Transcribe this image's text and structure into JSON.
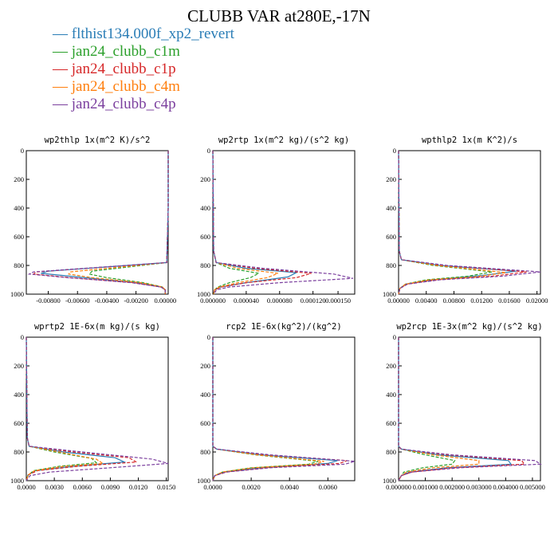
{
  "title": "CLUBB VAR at280E,-17N",
  "legend": [
    {
      "name": "flthist134.000f_xp2_revert",
      "color": "#2a7db6"
    },
    {
      "name": "jan24_clubb_c1m",
      "color": "#2ca02c"
    },
    {
      "name": "jan24_clubb_c1p",
      "color": "#d62728"
    },
    {
      "name": "jan24_clubb_c4m",
      "color": "#ff7f0e"
    },
    {
      "name": "jan24_clubb_c4p",
      "color": "#7b3f9e"
    }
  ],
  "chart_data": [
    {
      "type": "line",
      "title": "wp2thlp  1x(m^2 K)/s^2",
      "xlim": [
        -0.0095,
        0.0002
      ],
      "ylim": [
        1000,
        0
      ],
      "x_ticks": [
        "-0.00800",
        "-0.00600",
        "-0.00400",
        "-0.00200",
        "0.00000"
      ],
      "x_tick_values": [
        -0.008,
        -0.006,
        -0.004,
        -0.002,
        0
      ],
      "y_ticks": [
        "0",
        "200",
        "400",
        "600",
        "800",
        "1000"
      ],
      "y_tick_values": [
        0,
        200,
        400,
        600,
        800,
        1000
      ],
      "series": [
        {
          "name": "flthist134.000f_xp2_revert",
          "style": "solid",
          "y": [
            0,
            400,
            780,
            840,
            855,
            880,
            920,
            950,
            970,
            1000
          ],
          "x": [
            0.0002,
            0.0002,
            0.0001,
            -0.008,
            -0.0085,
            -0.006,
            -0.002,
            -0.0003,
            0,
            0
          ]
        },
        {
          "name": "jan24_clubb_c1m",
          "style": "dash",
          "y": [
            0,
            400,
            780,
            840,
            860,
            885,
            920,
            950,
            970,
            1000
          ],
          "x": [
            0.0002,
            0.0002,
            0.0001,
            -0.005,
            -0.0052,
            -0.004,
            -0.0015,
            -0.0002,
            0,
            0
          ]
        },
        {
          "name": "jan24_clubb_c1p",
          "style": "dash",
          "y": [
            0,
            400,
            780,
            845,
            860,
            885,
            920,
            950,
            970,
            1000
          ],
          "x": [
            0.0002,
            0.0002,
            0.0001,
            -0.0088,
            -0.009,
            -0.0065,
            -0.0022,
            -0.0003,
            0,
            0
          ]
        },
        {
          "name": "jan24_clubb_c4m",
          "style": "dash",
          "y": [
            0,
            400,
            780,
            845,
            860,
            885,
            920,
            950,
            970,
            1000
          ],
          "x": [
            0.0002,
            0.0002,
            0.0001,
            -0.0065,
            -0.0066,
            -0.005,
            -0.0017,
            -0.0002,
            0,
            0
          ]
        },
        {
          "name": "jan24_clubb_c4p",
          "style": "dash",
          "y": [
            0,
            400,
            780,
            845,
            860,
            885,
            920,
            950,
            970,
            1000
          ],
          "x": [
            0.0002,
            0.0002,
            0.0001,
            -0.009,
            -0.0093,
            -0.0067,
            -0.0023,
            -0.0003,
            0,
            0
          ]
        }
      ]
    },
    {
      "type": "line",
      "title": "wp2rtp  1x(m^2 kg)/(s^2 kg)",
      "xlim": [
        0,
        0.00017
      ],
      "ylim": [
        1000,
        0
      ],
      "x_ticks": [
        "0.000000",
        "0.000040",
        "0.000080",
        "0.000120",
        "0.000150"
      ],
      "x_tick_values": [
        0,
        4e-05,
        8e-05,
        0.00012,
        0.00015
      ],
      "y_ticks": [
        "0",
        "200",
        "400",
        "600",
        "800",
        "1000"
      ],
      "y_tick_values": [
        0,
        200,
        400,
        600,
        800,
        1000
      ],
      "series": [
        {
          "name": "flthist134.000f_xp2_revert",
          "style": "solid",
          "y": [
            0,
            700,
            780,
            820,
            850,
            880,
            920,
            950,
            970,
            1000
          ],
          "x": [
            0,
            1e-06,
            4e-06,
            4e-05,
            0.0001,
            9e-05,
            4e-05,
            1e-05,
            2e-06,
            1e-06
          ]
        },
        {
          "name": "jan24_clubb_c1m",
          "style": "dash",
          "y": [
            0,
            700,
            780,
            820,
            855,
            885,
            920,
            950,
            970,
            1000
          ],
          "x": [
            0,
            1e-06,
            4e-06,
            2e-05,
            5.5e-05,
            4.5e-05,
            2e-05,
            6e-06,
            2e-06,
            1e-06
          ]
        },
        {
          "name": "jan24_clubb_c1p",
          "style": "dash",
          "y": [
            0,
            700,
            780,
            820,
            855,
            885,
            920,
            950,
            970,
            1000
          ],
          "x": [
            0,
            1e-06,
            4e-06,
            5e-05,
            0.000118,
            0.0001,
            4e-05,
            1e-05,
            2e-06,
            1e-06
          ]
        },
        {
          "name": "jan24_clubb_c4m",
          "style": "dash",
          "y": [
            0,
            700,
            780,
            820,
            855,
            885,
            920,
            950,
            970,
            1000
          ],
          "x": [
            0,
            1e-06,
            4e-06,
            3e-05,
            7.8e-05,
            6.5e-05,
            3e-05,
            8e-06,
            2e-06,
            1e-06
          ]
        },
        {
          "name": "jan24_clubb_c4p",
          "style": "dash",
          "y": [
            0,
            700,
            780,
            820,
            860,
            890,
            920,
            950,
            970,
            1000
          ],
          "x": [
            0,
            1e-06,
            4e-06,
            6e-05,
            0.000145,
            0.000168,
            8e-05,
            2e-05,
            4e-06,
            2e-06
          ]
        }
      ]
    },
    {
      "type": "line",
      "title": "wpthlp2  1x(m K^2)/s",
      "xlim": [
        0,
        0.0205
      ],
      "ylim": [
        1000,
        0
      ],
      "x_ticks": [
        "0.00000",
        "0.00400",
        "0.00800",
        "0.01200",
        "0.01600",
        "0.02000"
      ],
      "x_tick_values": [
        0,
        0.004,
        0.008,
        0.012,
        0.016,
        0.02
      ],
      "y_ticks": [
        "0",
        "200",
        "400",
        "600",
        "800",
        "1000"
      ],
      "y_tick_values": [
        0,
        200,
        400,
        600,
        800,
        1000
      ],
      "series": [
        {
          "name": "flthist134.000f_xp2_revert",
          "style": "solid",
          "y": [
            0,
            700,
            760,
            800,
            840,
            870,
            900,
            930,
            960,
            1000
          ],
          "x": [
            0,
            0.0001,
            0.0004,
            0.006,
            0.017,
            0.012,
            0.005,
            0.001,
            0.0002,
            0
          ]
        },
        {
          "name": "jan24_clubb_c1m",
          "style": "dash",
          "y": [
            0,
            700,
            760,
            800,
            845,
            875,
            900,
            930,
            960,
            1000
          ],
          "x": [
            0,
            0.0001,
            0.0004,
            0.005,
            0.0135,
            0.01,
            0.004,
            0.001,
            0.0002,
            0
          ]
        },
        {
          "name": "jan24_clubb_c1p",
          "style": "dash",
          "y": [
            0,
            700,
            760,
            800,
            845,
            875,
            900,
            930,
            960,
            1000
          ],
          "x": [
            0,
            0.0001,
            0.0004,
            0.0065,
            0.0185,
            0.0135,
            0.0055,
            0.0012,
            0.0002,
            0
          ]
        },
        {
          "name": "jan24_clubb_c4m",
          "style": "dash",
          "y": [
            0,
            700,
            760,
            800,
            850,
            880,
            900,
            930,
            960,
            1000
          ],
          "x": [
            0,
            0.0001,
            0.0004,
            0.0055,
            0.0155,
            0.011,
            0.0045,
            0.001,
            0.0002,
            0
          ]
        },
        {
          "name": "jan24_clubb_c4p",
          "style": "dash",
          "y": [
            0,
            700,
            760,
            800,
            845,
            875,
            900,
            930,
            960,
            1000
          ],
          "x": [
            0,
            0.0001,
            0.0004,
            0.007,
            0.0205,
            0.015,
            0.006,
            0.0013,
            0.0002,
            0
          ]
        }
      ]
    },
    {
      "type": "line",
      "title": "wprtp2  1E-6x(m kg)/(s kg)",
      "xlim": [
        0,
        0.0152
      ],
      "ylim": [
        1000,
        0
      ],
      "x_ticks": [
        "0.0000",
        "0.0030",
        "0.0060",
        "0.0090",
        "0.0120",
        "0.0150"
      ],
      "x_tick_values": [
        0,
        0.003,
        0.006,
        0.009,
        0.012,
        0.015
      ],
      "y_ticks": [
        "0",
        "200",
        "400",
        "600",
        "800",
        "1000"
      ],
      "y_tick_values": [
        0,
        200,
        400,
        600,
        800,
        1000
      ],
      "series": [
        {
          "name": "flthist134.000f_xp2_revert",
          "style": "solid",
          "y": [
            0,
            700,
            760,
            800,
            840,
            870,
            900,
            930,
            960,
            1000
          ],
          "x": [
            0,
            0.0001,
            0.0003,
            0.004,
            0.0095,
            0.0105,
            0.005,
            0.001,
            0.0002,
            0
          ]
        },
        {
          "name": "jan24_clubb_c1m",
          "style": "dash",
          "y": [
            0,
            700,
            760,
            800,
            845,
            875,
            900,
            930,
            960,
            1000
          ],
          "x": [
            0,
            0.0001,
            0.0003,
            0.003,
            0.007,
            0.0075,
            0.0035,
            0.0008,
            0.0002,
            0
          ]
        },
        {
          "name": "jan24_clubb_c1p",
          "style": "dash",
          "y": [
            0,
            700,
            760,
            800,
            840,
            870,
            900,
            930,
            960,
            1000
          ],
          "x": [
            0,
            0.0001,
            0.0003,
            0.005,
            0.011,
            0.0118,
            0.0055,
            0.0012,
            0.0002,
            0
          ]
        },
        {
          "name": "jan24_clubb_c4m",
          "style": "dash",
          "y": [
            0,
            700,
            760,
            800,
            850,
            880,
            900,
            930,
            960,
            1000
          ],
          "x": [
            0,
            0.0001,
            0.0003,
            0.0035,
            0.0075,
            0.0082,
            0.004,
            0.0009,
            0.0002,
            0
          ]
        },
        {
          "name": "jan24_clubb_c4p",
          "style": "dash",
          "y": [
            0,
            700,
            760,
            800,
            850,
            880,
            910,
            940,
            965,
            1000
          ],
          "x": [
            0,
            0.0001,
            0.0003,
            0.006,
            0.0135,
            0.0152,
            0.009,
            0.0025,
            0.0004,
            0
          ]
        }
      ]
    },
    {
      "type": "line",
      "title": "rcp2  1E-6x(kg^2)/(kg^2)",
      "xlim": [
        0,
        0.0074
      ],
      "ylim": [
        1000,
        0
      ],
      "x_ticks": [
        "0.0000",
        "0.0020",
        "0.0040",
        "0.0060"
      ],
      "x_tick_values": [
        0,
        0.002,
        0.004,
        0.006
      ],
      "y_ticks": [
        "0",
        "200",
        "400",
        "600",
        "800",
        "1000"
      ],
      "y_tick_values": [
        0,
        200,
        400,
        600,
        800,
        1000
      ],
      "series": [
        {
          "name": "flthist134.000f_xp2_revert",
          "style": "solid",
          "y": [
            0,
            760,
            780,
            820,
            860,
            880,
            910,
            940,
            965,
            1000
          ],
          "x": [
            0,
            0,
            0.0002,
            0.0025,
            0.0065,
            0.006,
            0.0025,
            0.0006,
            0.0001,
            0
          ]
        },
        {
          "name": "jan24_clubb_c1m",
          "style": "dash",
          "y": [
            0,
            760,
            780,
            820,
            865,
            885,
            910,
            940,
            965,
            1000
          ],
          "x": [
            0,
            0,
            0.0002,
            0.0022,
            0.0055,
            0.005,
            0.002,
            0.0005,
            0.0001,
            0
          ]
        },
        {
          "name": "jan24_clubb_c1p",
          "style": "dash",
          "y": [
            0,
            760,
            780,
            820,
            860,
            880,
            910,
            940,
            965,
            1000
          ],
          "x": [
            0,
            0,
            0.0002,
            0.0028,
            0.007,
            0.0066,
            0.0028,
            0.0007,
            0.0001,
            0
          ]
        },
        {
          "name": "jan24_clubb_c4m",
          "style": "dash",
          "y": [
            0,
            760,
            780,
            820,
            865,
            885,
            910,
            940,
            965,
            1000
          ],
          "x": [
            0,
            0,
            0.0002,
            0.0023,
            0.0058,
            0.0053,
            0.0021,
            0.0005,
            0.0001,
            0
          ]
        },
        {
          "name": "jan24_clubb_c4p",
          "style": "dash",
          "y": [
            0,
            760,
            780,
            820,
            865,
            885,
            910,
            940,
            965,
            1000
          ],
          "x": [
            0,
            0,
            0.0002,
            0.003,
            0.0074,
            0.0069,
            0.003,
            0.0007,
            0.0001,
            0
          ]
        }
      ]
    },
    {
      "type": "line",
      "title": "wp2rcp  1E-3x(m^2 kg)/(s^2 kg)",
      "xlim": [
        0,
        0.0053
      ],
      "ylim": [
        1000,
        0
      ],
      "x_ticks": [
        "0.000000",
        "0.001000",
        "0.002000",
        "0.003000",
        "0.004000",
        "0.005000"
      ],
      "x_tick_values": [
        0,
        0.001,
        0.002,
        0.003,
        0.004,
        0.005
      ],
      "y_ticks": [
        "0",
        "200",
        "400",
        "600",
        "800",
        "1000"
      ],
      "y_tick_values": [
        0,
        200,
        400,
        600,
        800,
        1000
      ],
      "series": [
        {
          "name": "flthist134.000f_xp2_revert",
          "style": "solid",
          "y": [
            0,
            760,
            780,
            820,
            860,
            885,
            910,
            940,
            965,
            1000
          ],
          "x": [
            0,
            0,
            0.0001,
            0.0015,
            0.0041,
            0.0042,
            0.0018,
            0.0004,
            0.0001,
            0
          ]
        },
        {
          "name": "jan24_clubb_c1m",
          "style": "dash",
          "y": [
            0,
            760,
            780,
            820,
            860,
            885,
            910,
            940,
            965,
            1000
          ],
          "x": [
            0,
            0,
            0.0001,
            0.001,
            0.0021,
            0.002,
            0.0009,
            0.0002,
            0.0001,
            0
          ]
        },
        {
          "name": "jan24_clubb_c1p",
          "style": "dash",
          "y": [
            0,
            760,
            780,
            820,
            860,
            885,
            910,
            940,
            965,
            1000
          ],
          "x": [
            0,
            0,
            0.0001,
            0.0018,
            0.0046,
            0.0047,
            0.002,
            0.0005,
            0.0001,
            0
          ]
        },
        {
          "name": "jan24_clubb_c4m",
          "style": "dash",
          "y": [
            0,
            760,
            780,
            820,
            860,
            885,
            910,
            940,
            965,
            1000
          ],
          "x": [
            0,
            0,
            0.0001,
            0.0013,
            0.003,
            0.003,
            0.0013,
            0.0003,
            0.0001,
            0
          ]
        },
        {
          "name": "jan24_clubb_c4p",
          "style": "dash",
          "y": [
            0,
            760,
            780,
            820,
            860,
            885,
            910,
            940,
            965,
            1000
          ],
          "x": [
            0,
            0,
            0.0001,
            0.002,
            0.0051,
            0.0053,
            0.0023,
            0.0005,
            0.0001,
            0
          ]
        }
      ]
    }
  ]
}
